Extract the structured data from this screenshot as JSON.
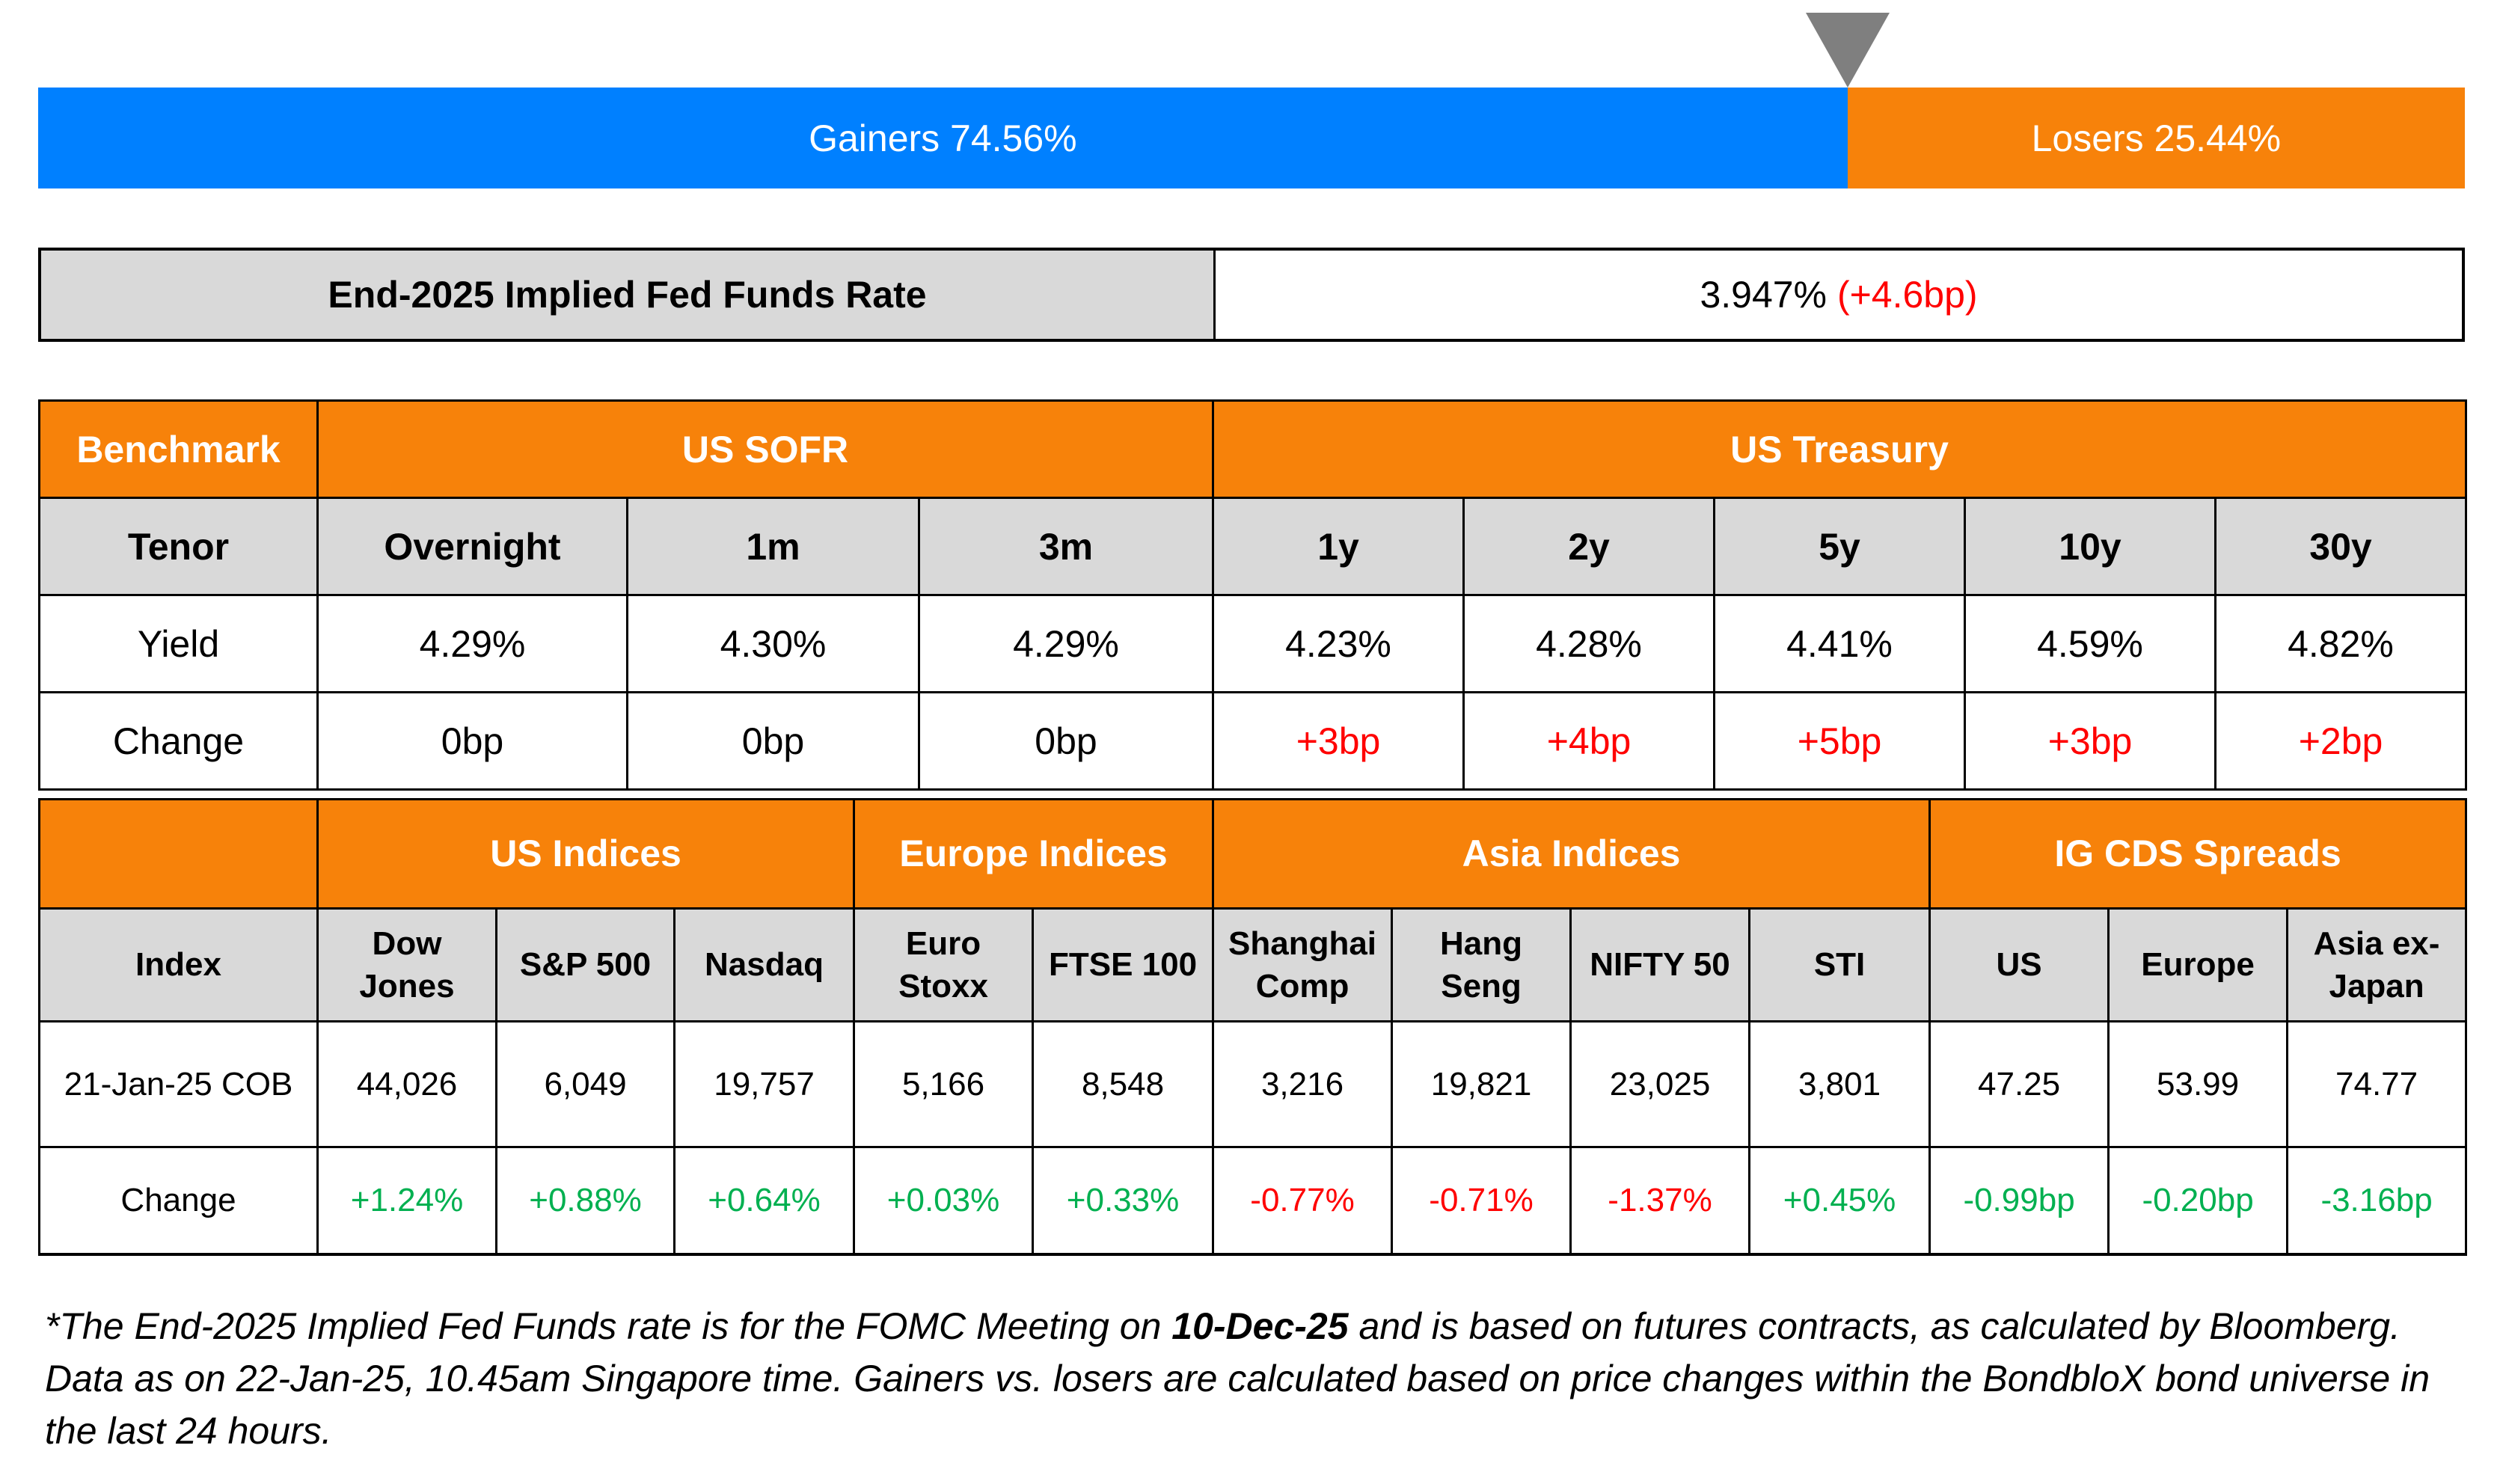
{
  "colors": {
    "gainers": "#0080FF",
    "losers": "#F7820A",
    "header": "#F7820A",
    "subheader": "#D9D9D9",
    "positive": "#00B050",
    "negative": "#FF0000",
    "rate_up": "#FF0000"
  },
  "breadth": {
    "gainers_label": "Gainers 74.56%",
    "losers_label": "Losers 25.44%",
    "gainers_pct": 74.56,
    "losers_pct": 25.44,
    "marker_icon": "triangle-down-icon"
  },
  "fed": {
    "label": "End-2025 Implied Fed Funds Rate",
    "value": "3.947%",
    "change": "(+4.6bp)"
  },
  "rates": {
    "benchmark_label": "Benchmark",
    "groups": [
      "US SOFR",
      "US Treasury"
    ],
    "tenor_label": "Tenor",
    "tenors": [
      "Overnight",
      "1m",
      "3m",
      "1y",
      "2y",
      "5y",
      "10y",
      "30y"
    ],
    "yield_label": "Yield",
    "yields": [
      "4.29%",
      "4.30%",
      "4.29%",
      "4.23%",
      "4.28%",
      "4.41%",
      "4.59%",
      "4.82%"
    ],
    "change_label": "Change",
    "changes": [
      "0bp",
      "0bp",
      "0bp",
      "+3bp",
      "+4bp",
      "+5bp",
      "+3bp",
      "+2bp"
    ],
    "change_dir": [
      "flat",
      "flat",
      "flat",
      "up",
      "up",
      "up",
      "up",
      "up"
    ]
  },
  "indices": {
    "groups": [
      "US Indices",
      "Europe Indices",
      "Asia Indices",
      "IG CDS Spreads"
    ],
    "index_label": "Index",
    "names": [
      [
        "Dow",
        "Jones"
      ],
      [
        "S&P 500"
      ],
      [
        "Nasdaq"
      ],
      [
        "Euro",
        "Stoxx"
      ],
      [
        "FTSE 100"
      ],
      [
        "Shanghai",
        "Comp"
      ],
      [
        "Hang",
        "Seng"
      ],
      [
        "NIFTY 50"
      ],
      [
        "STI"
      ],
      [
        "US"
      ],
      [
        "Europe"
      ],
      [
        "Asia ex-",
        "Japan"
      ]
    ],
    "date_label": "21-Jan-25 COB",
    "levels": [
      "44,026",
      "6,049",
      "19,757",
      "5,166",
      "8,548",
      "3,216",
      "19,821",
      "23,025",
      "3,801",
      "47.25",
      "53.99",
      "74.77"
    ],
    "change_label": "Change",
    "changes": [
      "+1.24%",
      "+0.88%",
      "+0.64%",
      "+0.03%",
      "+0.33%",
      "-0.77%",
      "-0.71%",
      "-1.37%",
      "+0.45%",
      "-0.99bp",
      "-0.20bp",
      "-3.16bp"
    ],
    "change_color": [
      "green",
      "green",
      "green",
      "green",
      "green",
      "red",
      "red",
      "red",
      "green",
      "green",
      "green",
      "green"
    ]
  },
  "footnote": {
    "part1": "*The End-2025 Implied Fed Funds rate is for the FOMC Meeting on ",
    "bold": "10-Dec-25",
    "part2": " and is based on futures contracts, as calculated by Bloomberg. Data as on 22-Jan-25, 10.45am Singapore time. Gainers vs. losers are calculated based on price changes within the BondbloX bond universe in the last 24 hours."
  }
}
